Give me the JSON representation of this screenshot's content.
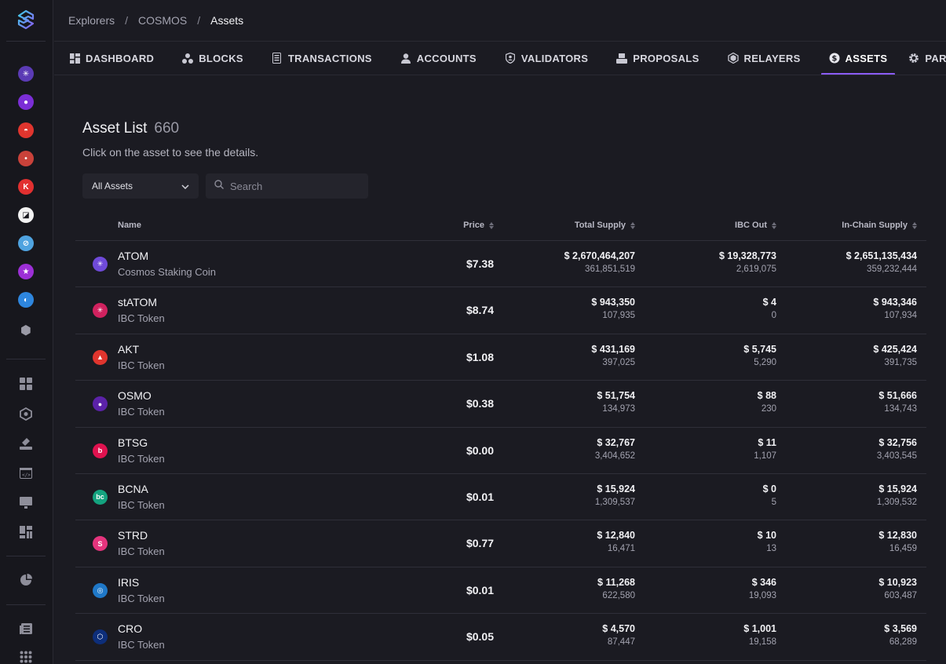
{
  "breadcrumb": {
    "items": [
      "Explorers",
      "COSMOS"
    ],
    "current": "Assets",
    "separator": "/"
  },
  "tabs": [
    {
      "label": "DASHBOARD",
      "icon": "dashboard-icon",
      "active": false
    },
    {
      "label": "BLOCKS",
      "icon": "blocks-icon",
      "active": false
    },
    {
      "label": "TRANSACTIONS",
      "icon": "transactions-icon",
      "active": false
    },
    {
      "label": "ACCOUNTS",
      "icon": "user-icon",
      "active": false
    },
    {
      "label": "VALIDATORS",
      "icon": "shield-icon",
      "active": false
    },
    {
      "label": "PROPOSALS",
      "icon": "vote-icon",
      "active": false
    },
    {
      "label": "RELAYERS",
      "icon": "relayer-icon",
      "active": false
    },
    {
      "label": "ASSETS",
      "icon": "dollar-icon",
      "active": true
    },
    {
      "label": "PARAMETERS",
      "icon": "gear-icon",
      "active": false
    }
  ],
  "page": {
    "title": "Asset List",
    "count": "660",
    "subtitle": "Click on the asset to see the details.",
    "filter_label": "All Assets",
    "search_placeholder": "Search"
  },
  "table": {
    "headers": {
      "name": "Name",
      "price": "Price",
      "total_supply": "Total Supply",
      "ibc_out": "IBC Out",
      "in_chain_supply": "In-Chain Supply"
    },
    "rows": [
      {
        "symbol": "ATOM",
        "desc": "Cosmos Staking Coin",
        "price": "$7.38",
        "supply_usd": "$ 2,670,464,207",
        "supply": "361,851,519",
        "ibc_usd": "$ 19,328,773",
        "ibc": "2,619,075",
        "chain_usd": "$ 2,651,135,434",
        "chain": "359,232,444",
        "icon_color": "#6f4ad9",
        "icon_glyph": "✳"
      },
      {
        "symbol": "stATOM",
        "desc": "IBC Token",
        "price": "$8.74",
        "supply_usd": "$ 943,350",
        "supply": "107,935",
        "ibc_usd": "$ 4",
        "ibc": "0",
        "chain_usd": "$ 943,346",
        "chain": "107,934",
        "icon_color": "#d1225f",
        "icon_glyph": "✳"
      },
      {
        "symbol": "AKT",
        "desc": "IBC Token",
        "price": "$1.08",
        "supply_usd": "$ 431,169",
        "supply": "397,025",
        "ibc_usd": "$ 5,745",
        "ibc": "5,290",
        "chain_usd": "$ 425,424",
        "chain": "391,735",
        "icon_color": "#e0352e",
        "icon_glyph": "▲"
      },
      {
        "symbol": "OSMO",
        "desc": "IBC Token",
        "price": "$0.38",
        "supply_usd": "$ 51,754",
        "supply": "134,973",
        "ibc_usd": "$ 88",
        "ibc": "230",
        "chain_usd": "$ 51,666",
        "chain": "134,743",
        "icon_color": "#5b22a8",
        "icon_glyph": "●"
      },
      {
        "symbol": "BTSG",
        "desc": "IBC Token",
        "price": "$0.00",
        "supply_usd": "$ 32,767",
        "supply": "3,404,652",
        "ibc_usd": "$ 11",
        "ibc": "1,107",
        "chain_usd": "$ 32,756",
        "chain": "3,403,545",
        "icon_color": "#e0124f",
        "icon_glyph": "b"
      },
      {
        "symbol": "BCNA",
        "desc": "IBC Token",
        "price": "$0.01",
        "supply_usd": "$ 15,924",
        "supply": "1,309,537",
        "ibc_usd": "$ 0",
        "ibc": "5",
        "chain_usd": "$ 15,924",
        "chain": "1,309,532",
        "icon_color": "#14a37f",
        "icon_glyph": "bc"
      },
      {
        "symbol": "STRD",
        "desc": "IBC Token",
        "price": "$0.77",
        "supply_usd": "$ 12,840",
        "supply": "16,471",
        "ibc_usd": "$ 10",
        "ibc": "13",
        "chain_usd": "$ 12,830",
        "chain": "16,459",
        "icon_color": "#e5347d",
        "icon_glyph": "S"
      },
      {
        "symbol": "IRIS",
        "desc": "IBC Token",
        "price": "$0.01",
        "supply_usd": "$ 11,268",
        "supply": "622,580",
        "ibc_usd": "$ 346",
        "ibc": "19,093",
        "chain_usd": "$ 10,923",
        "chain": "603,487",
        "icon_color": "#1f78c8",
        "icon_glyph": "◎"
      },
      {
        "symbol": "CRO",
        "desc": "IBC Token",
        "price": "$0.05",
        "supply_usd": "$ 4,570",
        "supply": "87,447",
        "ibc_usd": "$ 1,001",
        "ibc": "19,158",
        "chain_usd": "$ 3,569",
        "chain": "68,289",
        "icon_color": "#0d2e7a",
        "icon_glyph": "⬡"
      }
    ]
  },
  "sidebar": {
    "chains": [
      {
        "name": "cosmos-hub-icon",
        "color": "#5b3bb5"
      },
      {
        "name": "osmosis-icon",
        "color": "#7b2ed6"
      },
      {
        "name": "akash-icon",
        "color": "#e0352e"
      },
      {
        "name": "chain-red-icon",
        "color": "#c9423a"
      },
      {
        "name": "kava-icon",
        "color": "#e23030"
      },
      {
        "name": "chain-box-icon",
        "color": "#ffffff"
      },
      {
        "name": "chain-blue-icon",
        "color": "#4fa3e0"
      },
      {
        "name": "chain-purple-star-icon",
        "color": "#9c2fd6"
      },
      {
        "name": "chain-globe-icon",
        "color": "#2e86de"
      },
      {
        "name": "chain-hex-icon",
        "color": "#8a8a96"
      }
    ]
  }
}
